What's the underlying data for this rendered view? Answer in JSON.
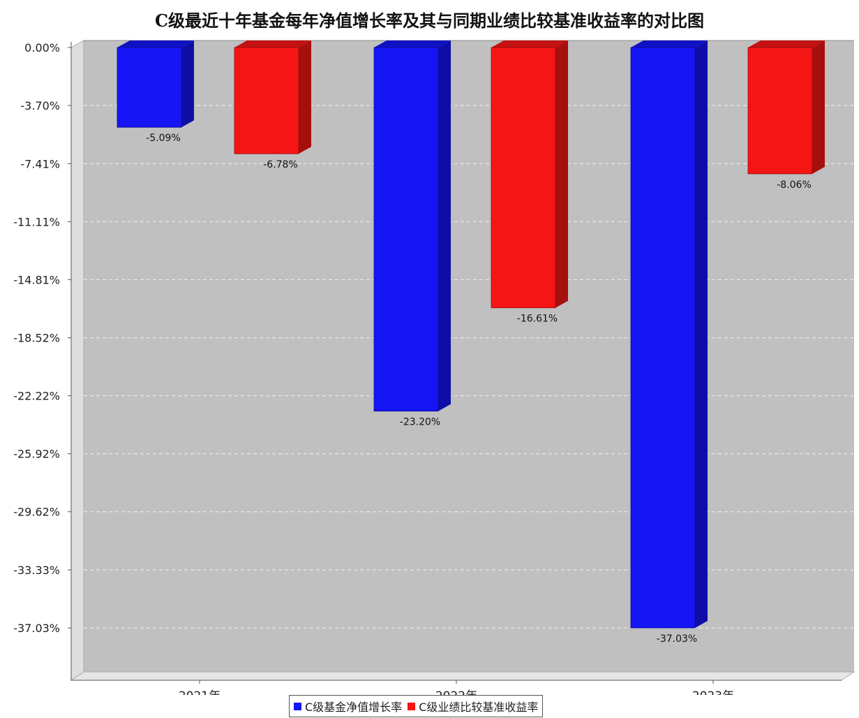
{
  "chart_data": {
    "type": "bar",
    "title": "C级最近十年基金每年净值增长率及其与同期业绩比较基准收益率的对比图",
    "categories": [
      "2021年",
      "2022年",
      "2023年"
    ],
    "series": [
      {
        "name": "C级基金净值增长率",
        "color": "#1515f5",
        "values": [
          -5.09,
          -23.2,
          -37.03
        ],
        "labels": [
          "-5.09%",
          "-23.20%",
          "-37.03%"
        ]
      },
      {
        "name": "C级业绩比较基准收益率",
        "color": "#f51515",
        "values": [
          -6.78,
          -16.61,
          -8.06
        ],
        "labels": [
          "-6.78%",
          "-16.61%",
          "-8.06%"
        ]
      }
    ],
    "yticks": [
      0,
      -3.7,
      -7.41,
      -11.11,
      -14.81,
      -18.52,
      -22.22,
      -25.92,
      -29.62,
      -33.33,
      -37.03
    ],
    "ytick_labels": [
      "0.00%",
      "-3.70%",
      "-7.41%",
      "-11.11%",
      "-14.81%",
      "-18.52%",
      "-22.22%",
      "-25.92%",
      "-29.62%",
      "-33.33%",
      "-37.03%"
    ],
    "ylim": [
      -38.5,
      0
    ],
    "xlabel": "",
    "ylabel": "",
    "grid": true,
    "legend": "bottom-center"
  }
}
